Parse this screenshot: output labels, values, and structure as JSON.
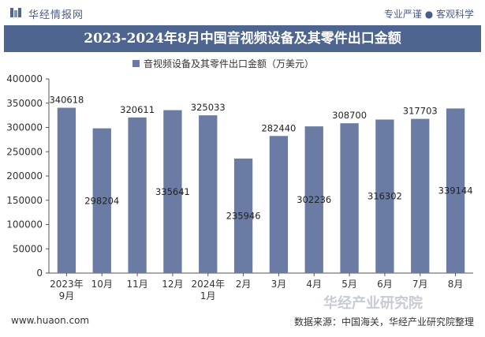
{
  "header": {
    "logo_text": "华经情报网",
    "tagline": "专业严谨 ● 客观科学"
  },
  "chart_title": "2023-2024年8月中国音视频设备及其零件出口金额",
  "chart_data": {
    "type": "bar",
    "title": "2023-2024年8月中国音视频设备及其零件出口金额",
    "categories": [
      "2023年\n9月",
      "10月",
      "11月",
      "12月",
      "2024年\n1月",
      "2月",
      "3月",
      "4月",
      "5月",
      "6月",
      "7月",
      "8月"
    ],
    "series": [
      {
        "name": "音视频设备及其零件出口金额（万美元）",
        "values": [
          340618,
          298204,
          320611,
          335641,
          325033,
          235946,
          282440,
          302236,
          308700,
          316302,
          317703,
          339144
        ]
      }
    ],
    "ylim": [
      0,
      400000
    ],
    "yticks": [
      0,
      50000,
      100000,
      150000,
      200000,
      250000,
      300000,
      350000,
      400000
    ],
    "label_positions": [
      "top",
      "mid",
      "top",
      "mid",
      "top",
      "mid",
      "top",
      "mid",
      "top",
      "mid",
      "top",
      "mid"
    ],
    "bar_color": "#6a7ca3",
    "legend": "top"
  },
  "watermark": {
    "text": "华经产业研究院",
    "url": "www.huaon.com"
  },
  "footer": {
    "url": "www.huaon.com",
    "source": "数据来源：中国海关，华经产业研究院整理"
  }
}
